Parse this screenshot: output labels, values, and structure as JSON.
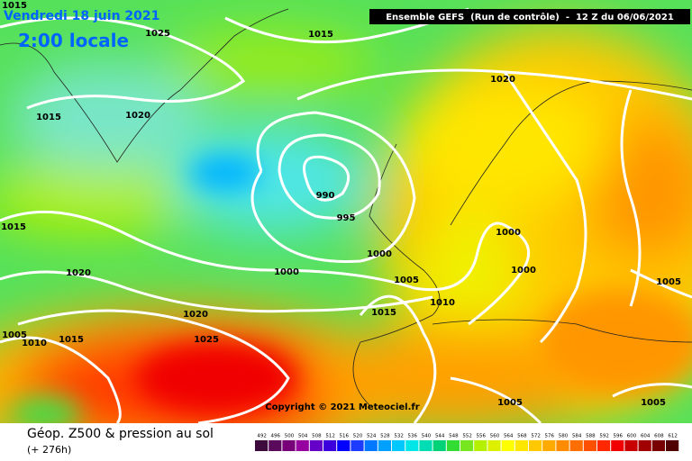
{
  "header": {
    "date": "Vendredi 18 juin 2021",
    "time": "2:00 locale",
    "model": "Ensemble GEFS  (Run de contrôle)  -  12 Z du 06/06/2021"
  },
  "isobar_labels": [
    "1015",
    "1025",
    "1015",
    "1020",
    "1015",
    "1020",
    "990",
    "995",
    "1000",
    "1015",
    "1000",
    "1000",
    "1020",
    "1000",
    "1005",
    "1010",
    "1015",
    "1020",
    "1005",
    "1005",
    "1010",
    "1015",
    "1025",
    "1005",
    "1005"
  ],
  "copyright": "Copyright © 2021 Meteociel.fr",
  "footer": {
    "title": "Géop. Z500 & pression au sol",
    "subtitle": "(+ 276h)"
  },
  "legend": {
    "values": [
      492,
      496,
      500,
      504,
      508,
      512,
      516,
      520,
      524,
      528,
      532,
      536,
      540,
      544,
      548,
      552,
      556,
      560,
      564,
      568,
      572,
      576,
      580,
      584,
      588,
      592,
      596,
      600,
      604,
      608,
      612
    ],
    "colors": [
      "#3c0a3c",
      "#5a0a5a",
      "#780078",
      "#9600a0",
      "#6400c8",
      "#3c00dc",
      "#0000ff",
      "#1e3cff",
      "#0078ff",
      "#00a0ff",
      "#00c8ff",
      "#00e6e6",
      "#00dcb4",
      "#00d278",
      "#32dc32",
      "#78e61e",
      "#b4f000",
      "#dcf000",
      "#ffff00",
      "#ffe600",
      "#ffc800",
      "#ffaa00",
      "#ff8c00",
      "#ff6e00",
      "#ff5000",
      "#ff2800",
      "#f00000",
      "#c80000",
      "#a00000",
      "#780000",
      "#500000"
    ]
  }
}
